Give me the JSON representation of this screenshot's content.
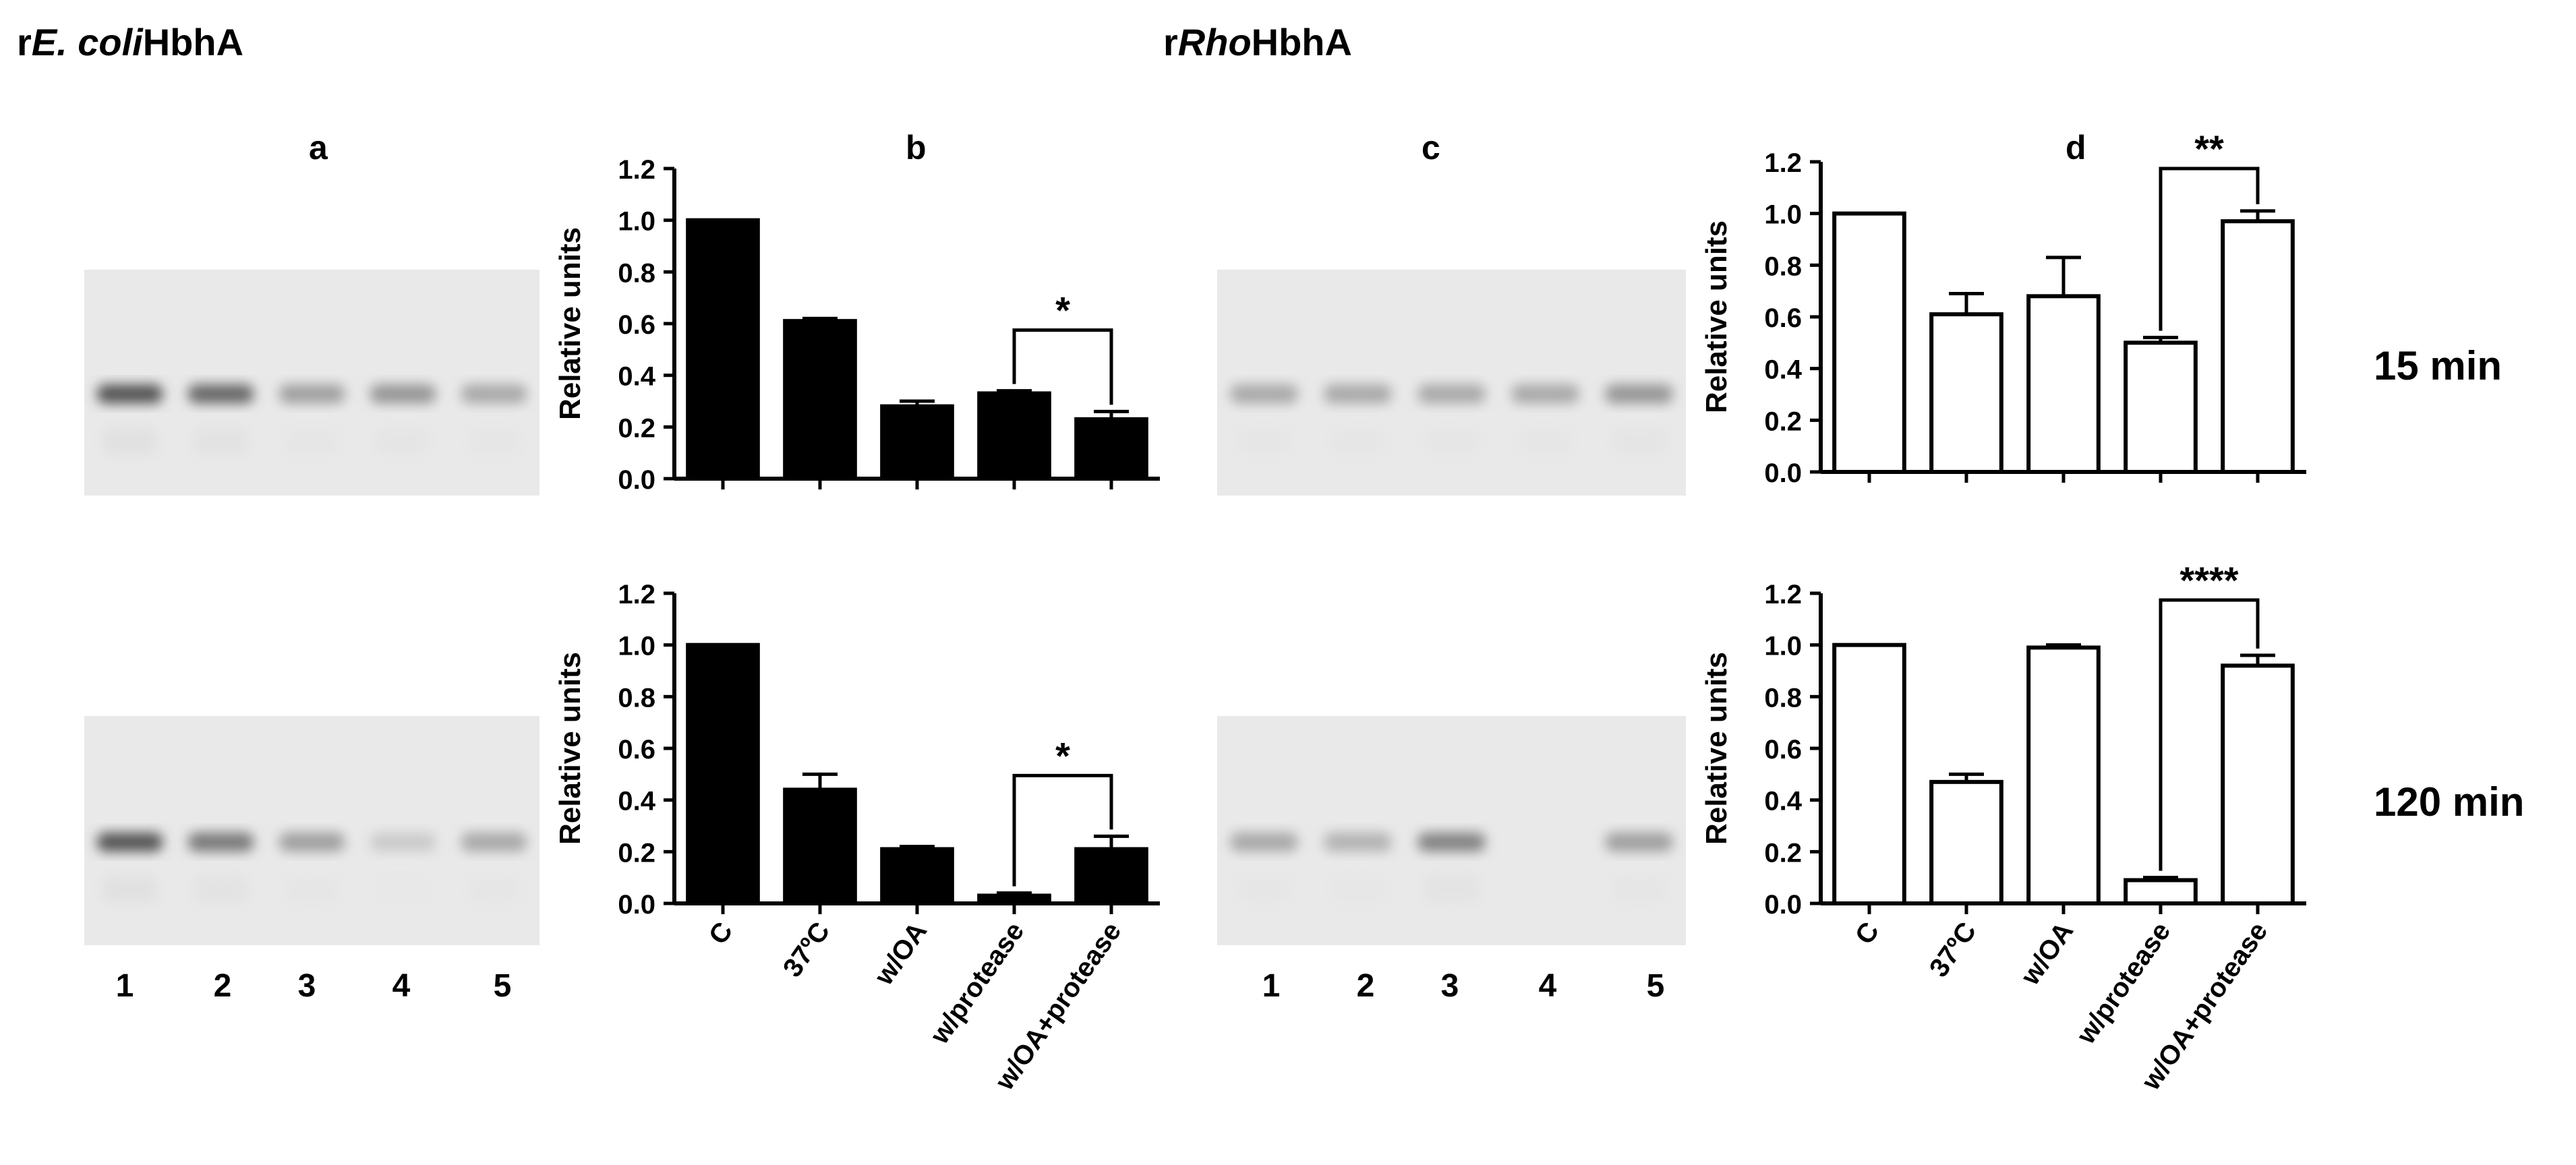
{
  "titles": {
    "left": {
      "prefix": "r",
      "italic": "E. coli",
      "suffix": "HbhA"
    },
    "right": {
      "prefix": "r",
      "italic": "Rho",
      "suffix": "HbhA"
    }
  },
  "panels": {
    "a": "a",
    "b": "b",
    "c": "c",
    "d": "d"
  },
  "lanes": [
    "1",
    "2",
    "3",
    "4",
    "5"
  ],
  "times": {
    "top": "15 min",
    "bottom": "120 min"
  },
  "y_ticks": [
    "0.0",
    "0.2",
    "0.4",
    "0.6",
    "0.8",
    "1.0",
    "1.2"
  ],
  "ylabel": "Relative units",
  "colors": {
    "filled_bar": "#000000",
    "open_bar": "#ffffff",
    "axis": "#000000"
  },
  "gels": {
    "a_top": {
      "bands": [
        0.75,
        0.65,
        0.35,
        0.4,
        0.3
      ]
    },
    "a_bottom": {
      "bands": [
        0.75,
        0.55,
        0.35,
        0.12,
        0.3
      ]
    },
    "c_top": {
      "bands": [
        0.3,
        0.3,
        0.3,
        0.3,
        0.4
      ]
    },
    "c_bottom": {
      "bands": [
        0.3,
        0.25,
        0.5,
        0.0,
        0.35
      ]
    }
  },
  "chart_data": [
    {
      "type": "bar",
      "panel": "b",
      "time": "15 min",
      "categories": [
        "C",
        "37ºC",
        "w/OA",
        "w/protease",
        "w/OA+protease"
      ],
      "values": [
        1.0,
        0.61,
        0.28,
        0.33,
        0.23
      ],
      "errors": [
        0.0,
        0.01,
        0.02,
        0.01,
        0.03
      ],
      "ylabel": "Relative units",
      "ylim": [
        0,
        1.2
      ],
      "fill": "filled",
      "significance": {
        "from": 3,
        "to": 4,
        "label": "*"
      },
      "show_categories": false
    },
    {
      "type": "bar",
      "panel": "b",
      "time": "120 min",
      "categories": [
        "C",
        "37ºC",
        "w/OA",
        "w/protease",
        "w/OA+protease"
      ],
      "values": [
        1.0,
        0.44,
        0.21,
        0.03,
        0.21
      ],
      "errors": [
        0.0,
        0.06,
        0.01,
        0.01,
        0.05
      ],
      "ylabel": "Relative units",
      "ylim": [
        0,
        1.2
      ],
      "fill": "filled",
      "significance": {
        "from": 3,
        "to": 4,
        "label": "*"
      },
      "show_categories": true
    },
    {
      "type": "bar",
      "panel": "d",
      "time": "15 min",
      "categories": [
        "C",
        "37ºC",
        "w/OA",
        "w/protease",
        "w/OA+protease"
      ],
      "values": [
        1.0,
        0.61,
        0.68,
        0.5,
        0.97
      ],
      "errors": [
        0.0,
        0.08,
        0.15,
        0.02,
        0.04
      ],
      "ylabel": "Relative units",
      "ylim": [
        0,
        1.2
      ],
      "fill": "open",
      "significance": {
        "from": 3,
        "to": 4,
        "label": "**"
      },
      "show_categories": false
    },
    {
      "type": "bar",
      "panel": "d",
      "time": "120 min",
      "categories": [
        "C",
        "37ºC",
        "w/OA",
        "w/protease",
        "w/OA+protease"
      ],
      "values": [
        1.0,
        0.47,
        0.99,
        0.09,
        0.92
      ],
      "errors": [
        0.0,
        0.03,
        0.01,
        0.01,
        0.04
      ],
      "ylabel": "Relative units",
      "ylim": [
        0,
        1.2
      ],
      "fill": "open",
      "significance": {
        "from": 3,
        "to": 4,
        "label": "****"
      },
      "show_categories": true
    }
  ]
}
